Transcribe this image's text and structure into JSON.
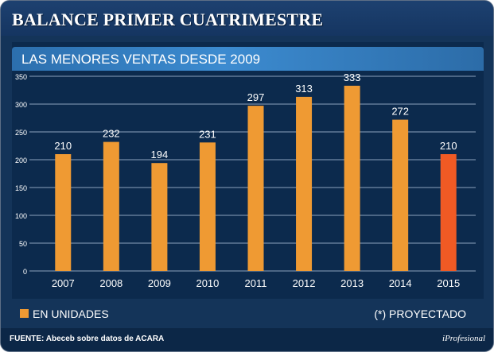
{
  "header": {
    "title": "BALANCE PRIMER CUATRIMESTRE"
  },
  "chart_data": {
    "type": "bar",
    "title": "LAS MENORES VENTAS DESDE 2009",
    "categories": [
      "2007",
      "2008",
      "2009",
      "2010",
      "2011",
      "2012",
      "2013",
      "2014",
      "2015"
    ],
    "values": [
      210,
      232,
      194,
      231,
      297,
      313,
      333,
      272,
      210
    ],
    "data_labels": [
      "210",
      "232",
      "194",
      "231",
      "297",
      "313",
      "333",
      "272",
      "210"
    ],
    "ylim": [
      0,
      350
    ],
    "yticks": [
      "0",
      "50",
      "100",
      "150",
      "200",
      "250",
      "300",
      "350"
    ],
    "grid": true,
    "highlight_category": "2015",
    "colors": {
      "bar": "#ef9a33",
      "highlight": "#f05a24",
      "grid": "#8da3bd"
    }
  },
  "legend": {
    "label": "EN UNIDADES",
    "note": "(*) PROYECTADO"
  },
  "footer": {
    "source": "FUENTE: Abeceb sobre datos de ACARA",
    "brand": "iProfesional"
  }
}
